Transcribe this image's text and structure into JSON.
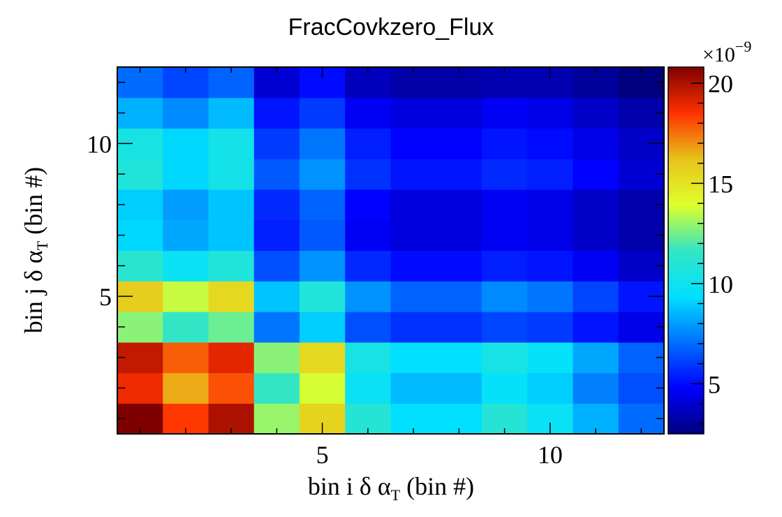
{
  "chart_data": {
    "type": "heatmap",
    "title": "FracCovkzero_Flux",
    "xlabel": {
      "pre": "bin i δ α",
      "sub": "T",
      "post": " (bin #)"
    },
    "ylabel": {
      "pre": "bin j δ α",
      "sub": "T",
      "post": " (bin #)"
    },
    "x_bins": 12,
    "y_bins": 12,
    "xlim": [
      0.5,
      12.5
    ],
    "ylim": [
      0.5,
      12.5
    ],
    "x_ticks": [
      5,
      10
    ],
    "y_ticks": [
      5,
      10
    ],
    "colorbar": {
      "range": [
        2.5,
        20.8
      ],
      "ticks": [
        5,
        10,
        15,
        20
      ],
      "multiplier": "×10",
      "exponent": "−9",
      "palette": "jet"
    },
    "values": [
      [
        20.8,
        18.4,
        20.0,
        13.0,
        15.6,
        11.0,
        9.4,
        9.4,
        11.0,
        9.8,
        8.4,
        7.0
      ],
      [
        18.8,
        16.6,
        18.0,
        11.6,
        13.8,
        9.8,
        8.6,
        8.6,
        9.6,
        9.0,
        7.4,
        6.4
      ],
      [
        19.6,
        17.8,
        19.0,
        12.8,
        15.4,
        10.4,
        9.4,
        9.4,
        10.4,
        9.6,
        8.2,
        6.8
      ],
      [
        12.8,
        11.6,
        12.4,
        7.2,
        9.0,
        6.4,
        5.8,
        5.8,
        6.2,
        6.0,
        5.2,
        4.4
      ],
      [
        15.8,
        13.6,
        15.4,
        8.8,
        10.8,
        7.8,
        6.8,
        6.8,
        7.6,
        7.2,
        6.2,
        5.2
      ],
      [
        11.2,
        9.8,
        10.8,
        6.4,
        7.8,
        5.6,
        5.0,
        5.0,
        5.4,
        5.2,
        4.6,
        3.8
      ],
      [
        9.2,
        8.2,
        8.8,
        5.4,
        6.6,
        4.6,
        4.2,
        4.2,
        4.6,
        4.4,
        3.8,
        3.3
      ],
      [
        9.0,
        8.0,
        8.8,
        5.6,
        6.8,
        4.8,
        4.2,
        4.2,
        4.6,
        4.4,
        3.8,
        3.3
      ],
      [
        10.8,
        9.2,
        10.2,
        6.6,
        7.8,
        5.8,
        5.2,
        5.2,
        5.6,
        5.4,
        4.8,
        4.0
      ],
      [
        10.4,
        9.2,
        10.2,
        6.0,
        7.2,
        5.4,
        4.8,
        4.8,
        5.2,
        5.0,
        4.4,
        3.8
      ],
      [
        8.4,
        7.6,
        8.6,
        5.2,
        6.0,
        4.6,
        4.2,
        4.2,
        4.6,
        4.4,
        3.8,
        3.3
      ],
      [
        7.0,
        6.2,
        6.8,
        4.0,
        5.0,
        3.6,
        3.2,
        3.2,
        3.4,
        3.4,
        3.0,
        2.5
      ]
    ]
  }
}
